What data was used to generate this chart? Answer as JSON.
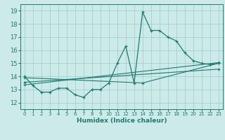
{
  "xlabel": "Humidex (Indice chaleur)",
  "xlim": [
    -0.5,
    23.5
  ],
  "ylim": [
    11.5,
    19.5
  ],
  "xticks": [
    0,
    1,
    2,
    3,
    4,
    5,
    6,
    7,
    8,
    9,
    10,
    11,
    12,
    13,
    14,
    15,
    16,
    17,
    18,
    19,
    20,
    21,
    22,
    23
  ],
  "yticks": [
    12,
    13,
    14,
    15,
    16,
    17,
    18,
    19
  ],
  "bg_color": "#cceae8",
  "grid_color": "#99ccca",
  "line_color": "#1e7a70",
  "main_line": {
    "x": [
      0,
      1,
      2,
      3,
      4,
      5,
      6,
      7,
      8,
      9,
      10,
      11,
      12,
      13,
      14,
      15,
      16,
      17,
      18,
      19,
      20,
      21,
      22,
      23
    ],
    "y": [
      14.0,
      13.3,
      12.8,
      12.8,
      13.1,
      13.1,
      12.6,
      12.4,
      13.0,
      13.0,
      13.5,
      15.0,
      16.3,
      13.5,
      18.9,
      17.5,
      17.5,
      17.0,
      16.7,
      15.8,
      15.2,
      15.0,
      14.9,
      15.0
    ]
  },
  "trend_lines": [
    {
      "x": [
        0,
        23
      ],
      "y": [
        13.35,
        15.05
      ]
    },
    {
      "x": [
        0,
        23
      ],
      "y": [
        13.55,
        14.55
      ]
    },
    {
      "x": [
        0,
        14,
        23
      ],
      "y": [
        13.9,
        13.5,
        15.0
      ]
    }
  ]
}
